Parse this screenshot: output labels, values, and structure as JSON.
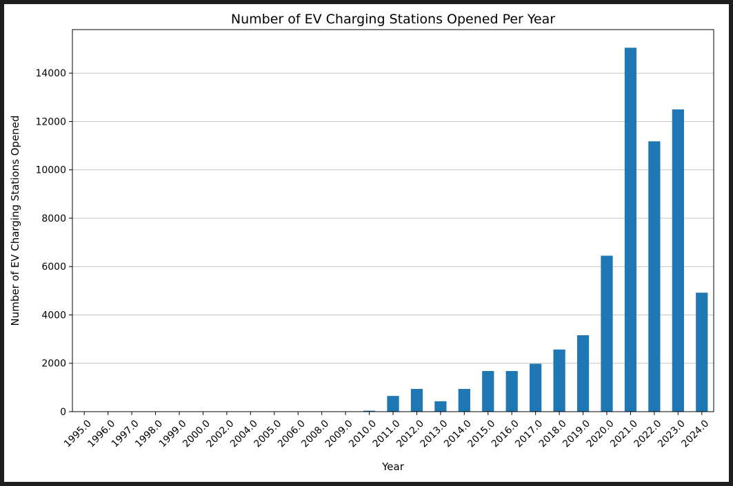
{
  "chart_data": {
    "type": "bar",
    "title": "Number of EV Charging Stations Opened Per Year",
    "xlabel": "Year",
    "ylabel": "Number of EV Charging Stations Opened",
    "categories": [
      "1995.0",
      "1996.0",
      "1997.0",
      "1998.0",
      "1999.0",
      "2000.0",
      "2002.0",
      "2004.0",
      "2005.0",
      "2006.0",
      "2008.0",
      "2009.0",
      "2010.0",
      "2011.0",
      "2012.0",
      "2013.0",
      "2014.0",
      "2015.0",
      "2016.0",
      "2017.0",
      "2018.0",
      "2019.0",
      "2020.0",
      "2021.0",
      "2022.0",
      "2023.0",
      "2024.0"
    ],
    "values": [
      1,
      1,
      1,
      1,
      1,
      1,
      1,
      1,
      1,
      1,
      1,
      1,
      40,
      650,
      940,
      430,
      940,
      1680,
      1680,
      1980,
      2570,
      3160,
      6450,
      15050,
      11180,
      12500,
      4920
    ],
    "ylim": [
      0,
      15800
    ],
    "yticks": [
      0,
      2000,
      4000,
      6000,
      8000,
      10000,
      12000,
      14000
    ],
    "grid": "y",
    "bar_color": "#1f77b4"
  }
}
